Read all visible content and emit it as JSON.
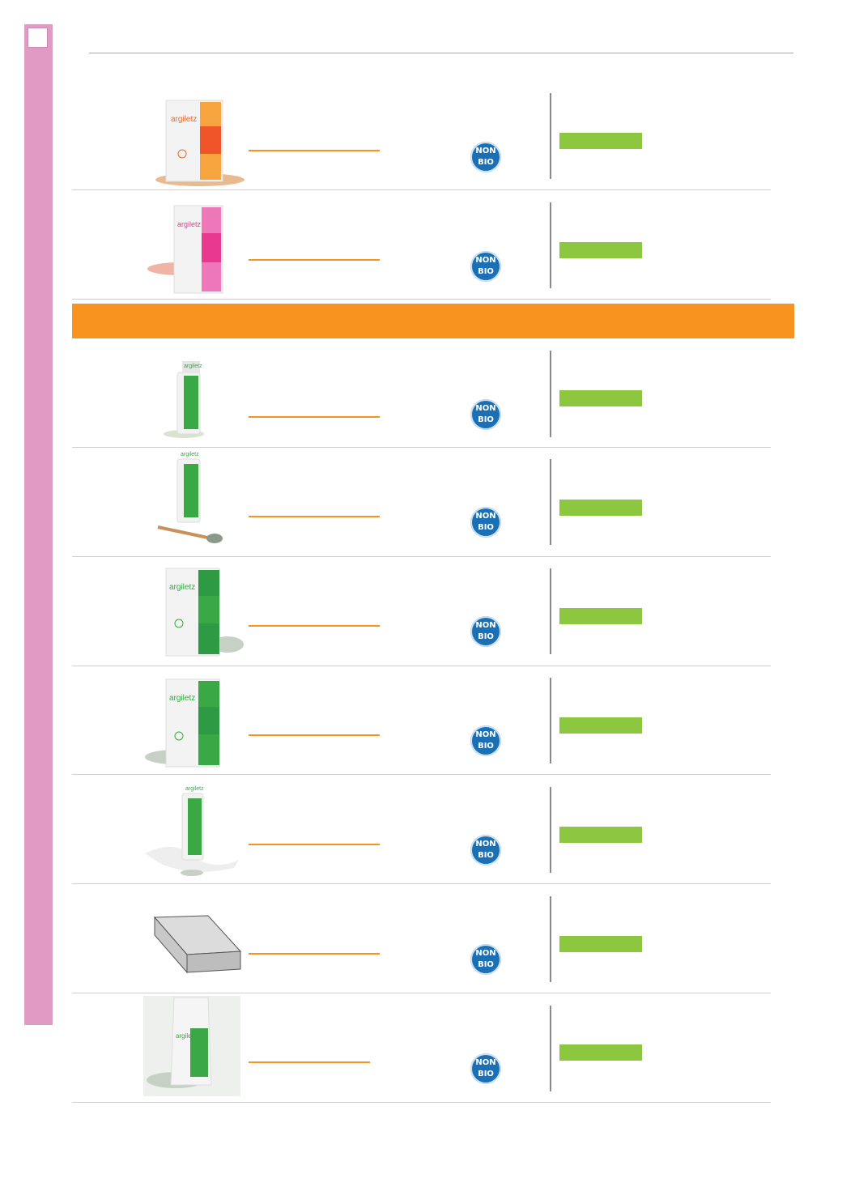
{
  "badge": {
    "line1": "NON",
    "line2": "BIO"
  },
  "colors": {
    "sidebar": "#df9bc4",
    "accent_orange": "#f7931e",
    "accent_green": "#8dc63f",
    "badge_blue": "#1b6fb5"
  },
  "section1": {
    "products": [
      {
        "image": "orange-clay-box"
      },
      {
        "image": "pink-clay-box"
      }
    ]
  },
  "section2": {
    "products": [
      {
        "image": "green-clay-tube"
      },
      {
        "image": "green-clay-tube-with-brush"
      },
      {
        "image": "green-clay-box"
      },
      {
        "image": "green-clay-box-powder"
      },
      {
        "image": "green-clay-tube-white"
      },
      {
        "image": "clay-block"
      },
      {
        "image": "green-clay-bag"
      }
    ]
  }
}
